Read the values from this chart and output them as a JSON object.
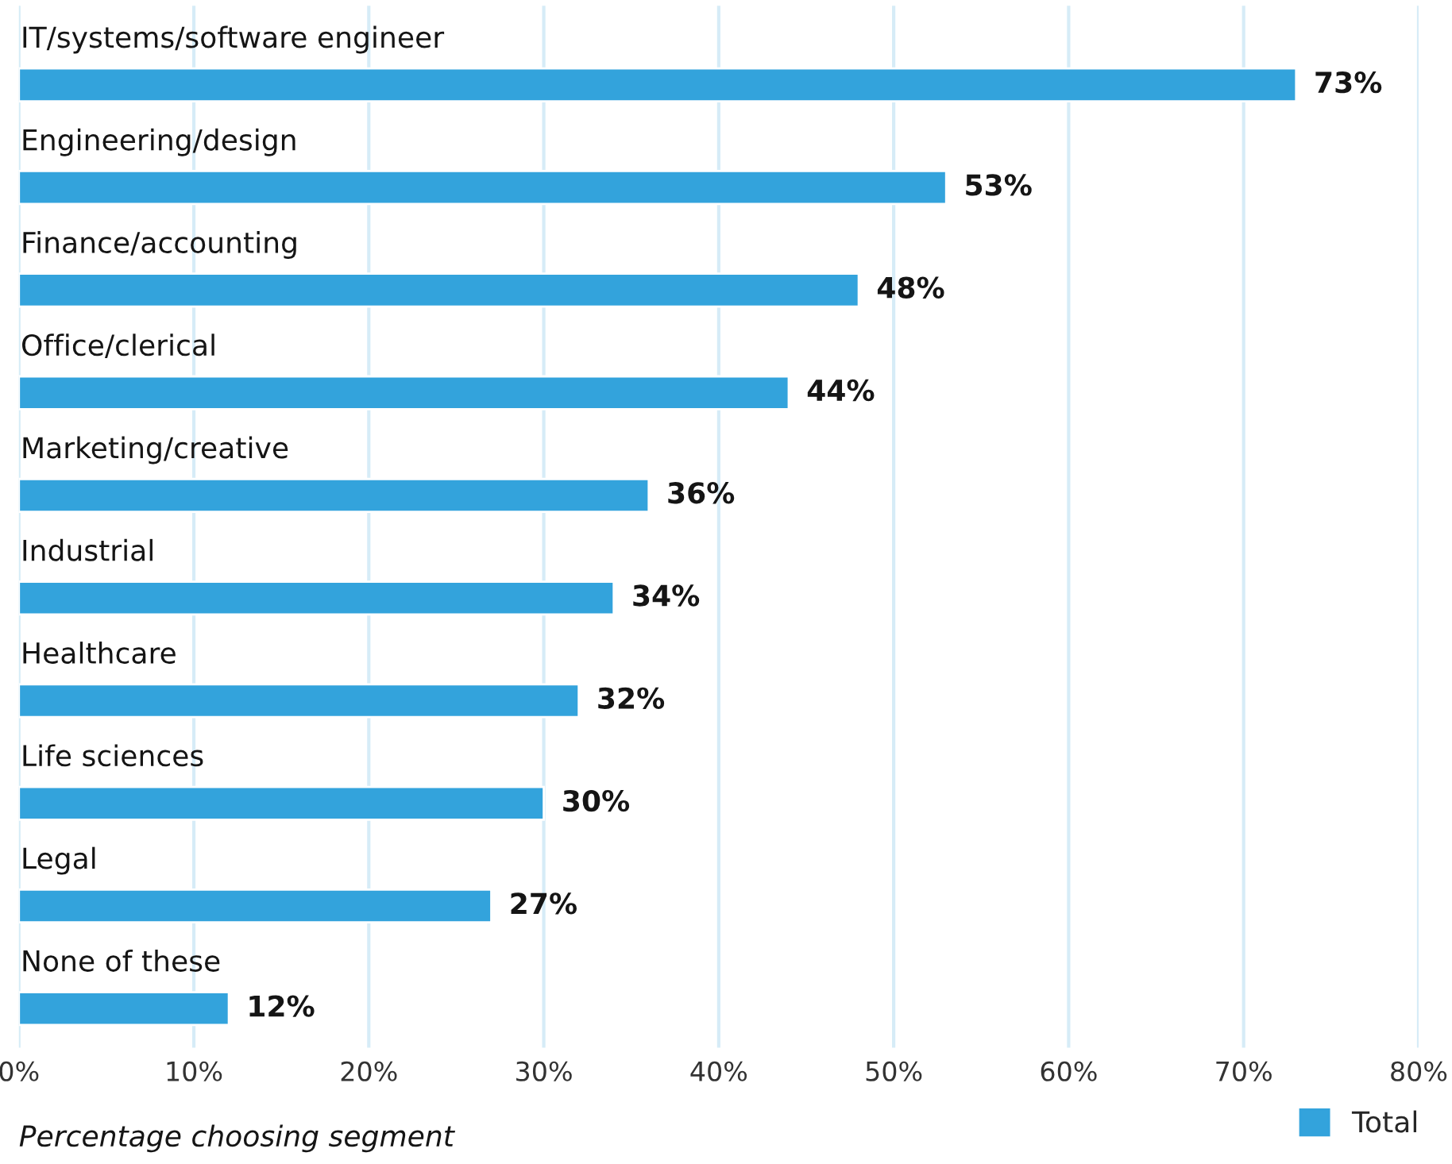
{
  "chart_data": {
    "type": "bar",
    "orientation": "horizontal",
    "categories": [
      "IT/systems/software engineer",
      "Engineering/design",
      "Finance/accounting",
      "Office/clerical",
      "Marketing/creative",
      "Industrial",
      "Healthcare",
      "Life sciences",
      "Legal",
      "None of these"
    ],
    "series": [
      {
        "name": "Total",
        "color": "#33a3dc",
        "values": [
          73,
          53,
          48,
          44,
          36,
          34,
          32,
          30,
          27,
          12
        ],
        "value_labels": [
          "73%",
          "53%",
          "48%",
          "44%",
          "36%",
          "34%",
          "32%",
          "30%",
          "27%",
          "12%"
        ]
      }
    ],
    "xlim": [
      0,
      80
    ],
    "xticks": [
      {
        "value": 0,
        "label": "0%"
      },
      {
        "value": 10,
        "label": "10%"
      },
      {
        "value": 20,
        "label": "20%"
      },
      {
        "value": 30,
        "label": "30%"
      },
      {
        "value": 40,
        "label": "40%"
      },
      {
        "value": 50,
        "label": "50%"
      },
      {
        "value": 60,
        "label": "60%"
      },
      {
        "value": 70,
        "label": "70%"
      },
      {
        "value": 80,
        "label": "80%"
      }
    ],
    "xlabel": "Percentage choosing segment",
    "grid": "x",
    "legend": "bottom right"
  }
}
